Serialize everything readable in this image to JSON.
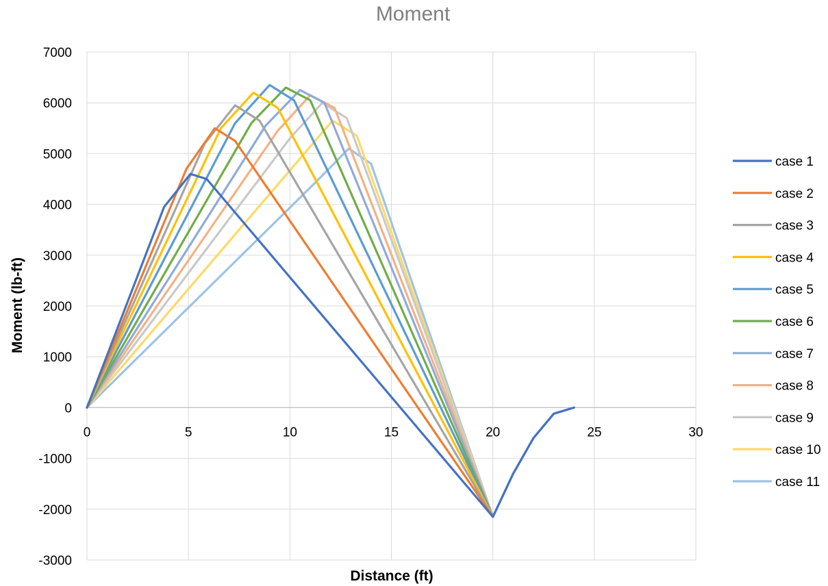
{
  "chart_data": {
    "type": "line",
    "title": "Moment",
    "xlabel": "Distance (ft)",
    "ylabel": "Moment (lb-ft)",
    "xlim": [
      0,
      30
    ],
    "ylim": [
      -3000,
      7000
    ],
    "x_ticks": [
      "0",
      "5",
      "10",
      "15",
      "20",
      "25",
      "30"
    ],
    "y_ticks": [
      "7000",
      "6000",
      "5000",
      "4000",
      "3000",
      "2000",
      "1000",
      "0",
      "-1000",
      "-2000",
      "-3000"
    ],
    "grid": true,
    "legend_position": "right",
    "series": [
      {
        "name": "case 1",
        "color": "#4472c4",
        "points": [
          [
            0,
            0
          ],
          [
            3.8,
            3950
          ],
          [
            5.1,
            4600
          ],
          [
            5.9,
            4500
          ],
          [
            20,
            -2150
          ],
          [
            21,
            -1300
          ],
          [
            22,
            -600
          ],
          [
            23,
            -120
          ],
          [
            24,
            0
          ]
        ]
      },
      {
        "name": "case 2",
        "color": "#ed7d31",
        "points": [
          [
            0,
            0
          ],
          [
            4.9,
            4700
          ],
          [
            6.3,
            5500
          ],
          [
            7.3,
            5250
          ],
          [
            20,
            -2150
          ]
        ]
      },
      {
        "name": "case 3",
        "color": "#a5a5a5",
        "points": [
          [
            0,
            0
          ],
          [
            5.8,
            5200
          ],
          [
            7.3,
            5950
          ],
          [
            8.5,
            5650
          ],
          [
            20,
            -2150
          ]
        ]
      },
      {
        "name": "case 4",
        "color": "#ffc000",
        "points": [
          [
            0,
            0
          ],
          [
            6.6,
            5500
          ],
          [
            8.2,
            6200
          ],
          [
            9.4,
            5900
          ],
          [
            20,
            -2150
          ]
        ]
      },
      {
        "name": "case 5",
        "color": "#5b9bd5",
        "points": [
          [
            0,
            0
          ],
          [
            7.3,
            5600
          ],
          [
            9.0,
            6350
          ],
          [
            10.2,
            6050
          ],
          [
            20,
            -2150
          ]
        ]
      },
      {
        "name": "case 6",
        "color": "#70ad47",
        "points": [
          [
            0,
            0
          ],
          [
            8.1,
            5600
          ],
          [
            9.8,
            6300
          ],
          [
            11.0,
            6050
          ],
          [
            20,
            -2150
          ]
        ]
      },
      {
        "name": "case 7",
        "color": "#8faadc",
        "points": [
          [
            0,
            0
          ],
          [
            8.8,
            5550
          ],
          [
            10.5,
            6250
          ],
          [
            11.7,
            6000
          ],
          [
            20,
            -2150
          ]
        ]
      },
      {
        "name": "case 8",
        "color": "#f4b183",
        "points": [
          [
            0,
            0
          ],
          [
            9.4,
            5450
          ],
          [
            11.0,
            6150
          ],
          [
            12.2,
            5900
          ],
          [
            20,
            -2150
          ]
        ]
      },
      {
        "name": "case 9",
        "color": "#c9c9c9",
        "points": [
          [
            0,
            0
          ],
          [
            10.0,
            5300
          ],
          [
            11.6,
            6000
          ],
          [
            12.8,
            5700
          ],
          [
            20,
            -2150
          ]
        ]
      },
      {
        "name": "case 10",
        "color": "#ffd966",
        "points": [
          [
            0,
            0
          ],
          [
            10.6,
            4950
          ],
          [
            12.1,
            5650
          ],
          [
            13.3,
            5350
          ],
          [
            20,
            -2150
          ]
        ]
      },
      {
        "name": "case 11",
        "color": "#9dc3e6",
        "points": [
          [
            0,
            0
          ],
          [
            11.3,
            4450
          ],
          [
            12.9,
            5100
          ],
          [
            14.0,
            4800
          ],
          [
            20,
            -2150
          ],
          [
            21,
            -1300
          ],
          [
            22,
            -600
          ],
          [
            23,
            -120
          ],
          [
            24,
            0
          ]
        ]
      }
    ]
  }
}
